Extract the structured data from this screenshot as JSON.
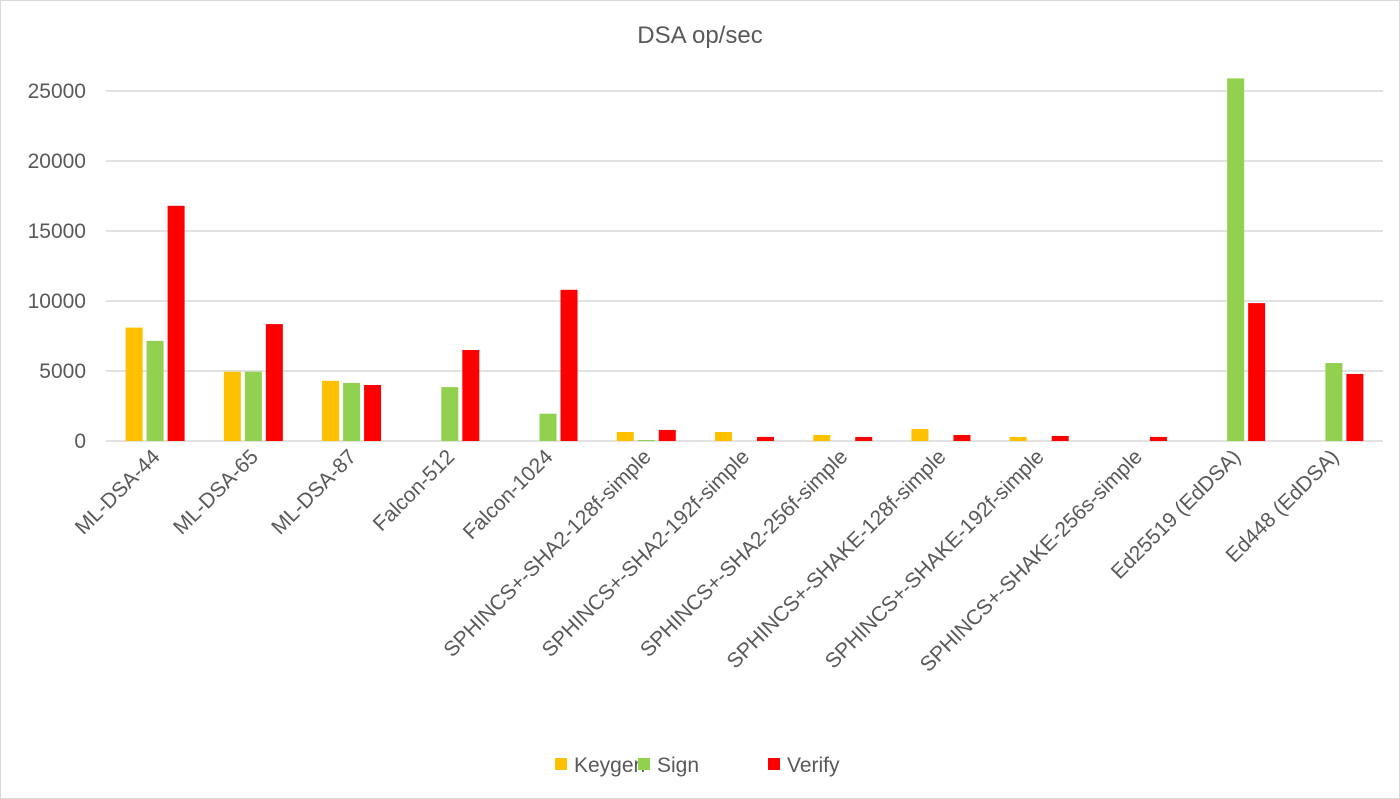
{
  "chart_data": {
    "type": "bar",
    "title": "DSA op/sec",
    "xlabel": "",
    "ylabel": "",
    "ylim": [
      0,
      25000
    ],
    "yticks": [
      0,
      5000,
      10000,
      15000,
      20000,
      25000
    ],
    "grid": true,
    "legend_position": "bottom",
    "categories": [
      "ML-DSA-44",
      "ML-DSA-65",
      "ML-DSA-87",
      "Falcon-512",
      "Falcon-1024",
      "SPHINCS+-SHA2-128f-simple",
      "SPHINCS+-SHA2-192f-simple",
      "SPHINCS+-SHA2-256f-simple",
      "SPHINCS+-SHAKE-128f-simple",
      "SPHINCS+-SHAKE-192f-simple",
      "SPHINCS+-SHAKE-256s-simple",
      "Ed25519 (EdDSA)",
      "Ed448 (EdDSA)"
    ],
    "series": [
      {
        "name": "Keygen",
        "color": "#ffc000",
        "values": [
          8100,
          4950,
          4300,
          0,
          0,
          640,
          640,
          430,
          860,
          290,
          0,
          0,
          0
        ]
      },
      {
        "name": "Sign",
        "color": "#92d050",
        "values": [
          7150,
          4950,
          4150,
          3850,
          1950,
          70,
          0,
          0,
          0,
          0,
          0,
          25900,
          5570
        ]
      },
      {
        "name": "Verify",
        "color": "#ff0000",
        "values": [
          16800,
          8350,
          4000,
          6500,
          10800,
          790,
          290,
          290,
          430,
          360,
          290,
          9850,
          4790
        ]
      }
    ]
  }
}
